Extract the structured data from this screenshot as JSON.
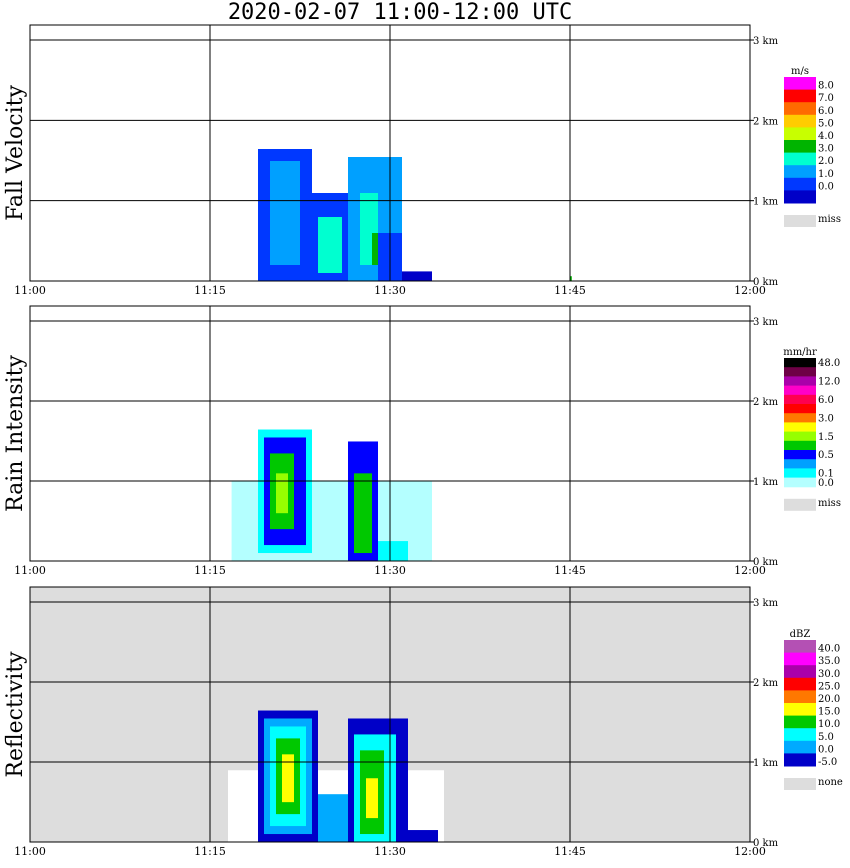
{
  "title": "2020-02-07   11:00-12:00 UTC",
  "x_ticks": [
    "11:00",
    "11:15",
    "11:30",
    "11:45",
    "12:00"
  ],
  "y_ticks": [
    "0 km",
    "1 km",
    "2 km",
    "3 km"
  ],
  "panels": [
    {
      "id": "fall-velocity",
      "label": "Fall Velocity",
      "unit": "m/s",
      "background": "#ffffff",
      "legend": [
        {
          "label": "8.0",
          "color": "#ff00ff"
        },
        {
          "label": "7.0",
          "color": "#ff0000"
        },
        {
          "label": "6.0",
          "color": "#ff6a00"
        },
        {
          "label": "5.0",
          "color": "#ffcc00"
        },
        {
          "label": "4.0",
          "color": "#c8ff00"
        },
        {
          "label": "3.0",
          "color": "#00b400"
        },
        {
          "label": "2.0",
          "color": "#00ffd0"
        },
        {
          "label": "1.0",
          "color": "#00a0ff"
        },
        {
          "label": "0.0",
          "color": "#0038ff"
        },
        {
          "label": "",
          "color": "#0000c8"
        }
      ],
      "miss_label": "miss"
    },
    {
      "id": "rain-intensity",
      "label": "Rain Intensity",
      "unit": "mm/hr",
      "background": "#ffffff",
      "legend": [
        {
          "label": "48.0",
          "color": "#000000"
        },
        {
          "label": "",
          "color": "#6e0046"
        },
        {
          "label": "12.0",
          "color": "#aa00aa"
        },
        {
          "label": "",
          "color": "#ff00c8"
        },
        {
          "label": "6.0",
          "color": "#ff0050"
        },
        {
          "label": "",
          "color": "#ff0000"
        },
        {
          "label": "3.0",
          "color": "#ff7800"
        },
        {
          "label": "",
          "color": "#ffff00"
        },
        {
          "label": "1.5",
          "color": "#96ff00"
        },
        {
          "label": "",
          "color": "#00c800"
        },
        {
          "label": "0.5",
          "color": "#0000ff"
        },
        {
          "label": "",
          "color": "#00a0ff"
        },
        {
          "label": "0.1",
          "color": "#00ffff"
        },
        {
          "label": "0.0",
          "color": "#b4ffff"
        }
      ],
      "miss_label": "miss"
    },
    {
      "id": "reflectivity",
      "label": "Reflectivity",
      "unit": "dBZ",
      "background": "#dddddd",
      "legend": [
        {
          "label": "40.0",
          "color": "#b450b4"
        },
        {
          "label": "35.0",
          "color": "#ff00ff"
        },
        {
          "label": "30.0",
          "color": "#aa00aa"
        },
        {
          "label": "25.0",
          "color": "#ff0000"
        },
        {
          "label": "20.0",
          "color": "#ff7800"
        },
        {
          "label": "15.0",
          "color": "#ffff00"
        },
        {
          "label": "10.0",
          "color": "#00c800"
        },
        {
          "label": "5.0",
          "color": "#00ffff"
        },
        {
          "label": "0.0",
          "color": "#00aaff"
        },
        {
          "label": "-5.0",
          "color": "#0000c8"
        }
      ],
      "miss_label": "none"
    }
  ],
  "chart_data": [
    {
      "type": "heatmap",
      "title": "Fall Velocity",
      "unit": "m/s",
      "x_range": [
        "11:00",
        "12:00"
      ],
      "ylim_km": [
        0,
        3.2
      ],
      "grid": true,
      "legend_position": "right",
      "echo_cells": [
        {
          "t0": 19.0,
          "t1": 23.5,
          "h0": 0.0,
          "h1": 1.65,
          "color": "#0038ff"
        },
        {
          "t0": 20.0,
          "t1": 22.5,
          "h0": 0.2,
          "h1": 1.5,
          "color": "#00a0ff"
        },
        {
          "t0": 23.5,
          "t1": 28.0,
          "h0": 0.0,
          "h1": 1.1,
          "color": "#0038ff"
        },
        {
          "t0": 24.0,
          "t1": 26.0,
          "h0": 0.1,
          "h1": 0.8,
          "color": "#00ffd0"
        },
        {
          "t0": 26.5,
          "t1": 31.0,
          "h0": 0.0,
          "h1": 1.55,
          "color": "#00a0ff"
        },
        {
          "t0": 27.5,
          "t1": 29.0,
          "h0": 0.2,
          "h1": 1.1,
          "color": "#00ffd0"
        },
        {
          "t0": 28.5,
          "t1": 29.2,
          "h0": 0.2,
          "h1": 0.6,
          "color": "#00b400"
        },
        {
          "t0": 29.0,
          "t1": 31.0,
          "h0": 0.0,
          "h1": 0.6,
          "color": "#0038ff"
        },
        {
          "t0": 31.0,
          "t1": 33.5,
          "h0": 0.0,
          "h1": 0.12,
          "color": "#0000c8"
        },
        {
          "t0": 45.0,
          "t1": 45.15,
          "h0": 0.0,
          "h1": 0.06,
          "color": "#00b400"
        }
      ]
    },
    {
      "type": "heatmap",
      "title": "Rain Intensity",
      "unit": "mm/hr",
      "x_range": [
        "11:00",
        "12:00"
      ],
      "ylim_km": [
        0,
        3.2
      ],
      "grid": true,
      "legend_position": "right",
      "echo_cells": [
        {
          "t0": 16.8,
          "t1": 33.5,
          "h0": 0.0,
          "h1": 1.0,
          "color": "#b4ffff"
        },
        {
          "t0": 19.0,
          "t1": 23.5,
          "h0": 0.1,
          "h1": 1.65,
          "color": "#00ffff"
        },
        {
          "t0": 19.5,
          "t1": 23.0,
          "h0": 0.2,
          "h1": 1.55,
          "color": "#0000ff"
        },
        {
          "t0": 20.0,
          "t1": 22.0,
          "h0": 0.4,
          "h1": 1.35,
          "color": "#00c800"
        },
        {
          "t0": 20.5,
          "t1": 21.5,
          "h0": 0.6,
          "h1": 1.1,
          "color": "#96ff00"
        },
        {
          "t0": 26.5,
          "t1": 29.0,
          "h0": 0.0,
          "h1": 1.5,
          "color": "#0000ff"
        },
        {
          "t0": 27.0,
          "t1": 28.5,
          "h0": 0.1,
          "h1": 1.1,
          "color": "#00c800"
        },
        {
          "t0": 29.0,
          "t1": 31.5,
          "h0": 0.0,
          "h1": 0.25,
          "color": "#00ffff"
        }
      ]
    },
    {
      "type": "heatmap",
      "title": "Reflectivity",
      "unit": "dBZ",
      "x_range": [
        "11:00",
        "12:00"
      ],
      "ylim_km": [
        0,
        3.2
      ],
      "grid": true,
      "legend_position": "right",
      "echo_cells": [
        {
          "t0": 16.5,
          "t1": 34.5,
          "h0": 0.0,
          "h1": 0.9,
          "color": "#ffffff"
        },
        {
          "t0": 19.0,
          "t1": 24.0,
          "h0": 0.0,
          "h1": 1.65,
          "color": "#0000c8"
        },
        {
          "t0": 19.5,
          "t1": 23.5,
          "h0": 0.1,
          "h1": 1.55,
          "color": "#00aaff"
        },
        {
          "t0": 20.0,
          "t1": 23.0,
          "h0": 0.2,
          "h1": 1.45,
          "color": "#00ffff"
        },
        {
          "t0": 20.5,
          "t1": 22.5,
          "h0": 0.35,
          "h1": 1.3,
          "color": "#00c800"
        },
        {
          "t0": 21.0,
          "t1": 22.0,
          "h0": 0.5,
          "h1": 1.1,
          "color": "#ffff00"
        },
        {
          "t0": 24.0,
          "t1": 28.0,
          "h0": 0.0,
          "h1": 0.6,
          "color": "#00aaff"
        },
        {
          "t0": 26.5,
          "t1": 31.5,
          "h0": 0.0,
          "h1": 1.55,
          "color": "#0000c8"
        },
        {
          "t0": 27.0,
          "t1": 30.5,
          "h0": 0.0,
          "h1": 1.35,
          "color": "#00ffff"
        },
        {
          "t0": 27.5,
          "t1": 29.5,
          "h0": 0.1,
          "h1": 1.15,
          "color": "#00c800"
        },
        {
          "t0": 28.0,
          "t1": 29.0,
          "h0": 0.3,
          "h1": 0.8,
          "color": "#ffff00"
        },
        {
          "t0": 31.5,
          "t1": 34.0,
          "h0": 0.0,
          "h1": 0.15,
          "color": "#0000c8"
        }
      ]
    }
  ]
}
